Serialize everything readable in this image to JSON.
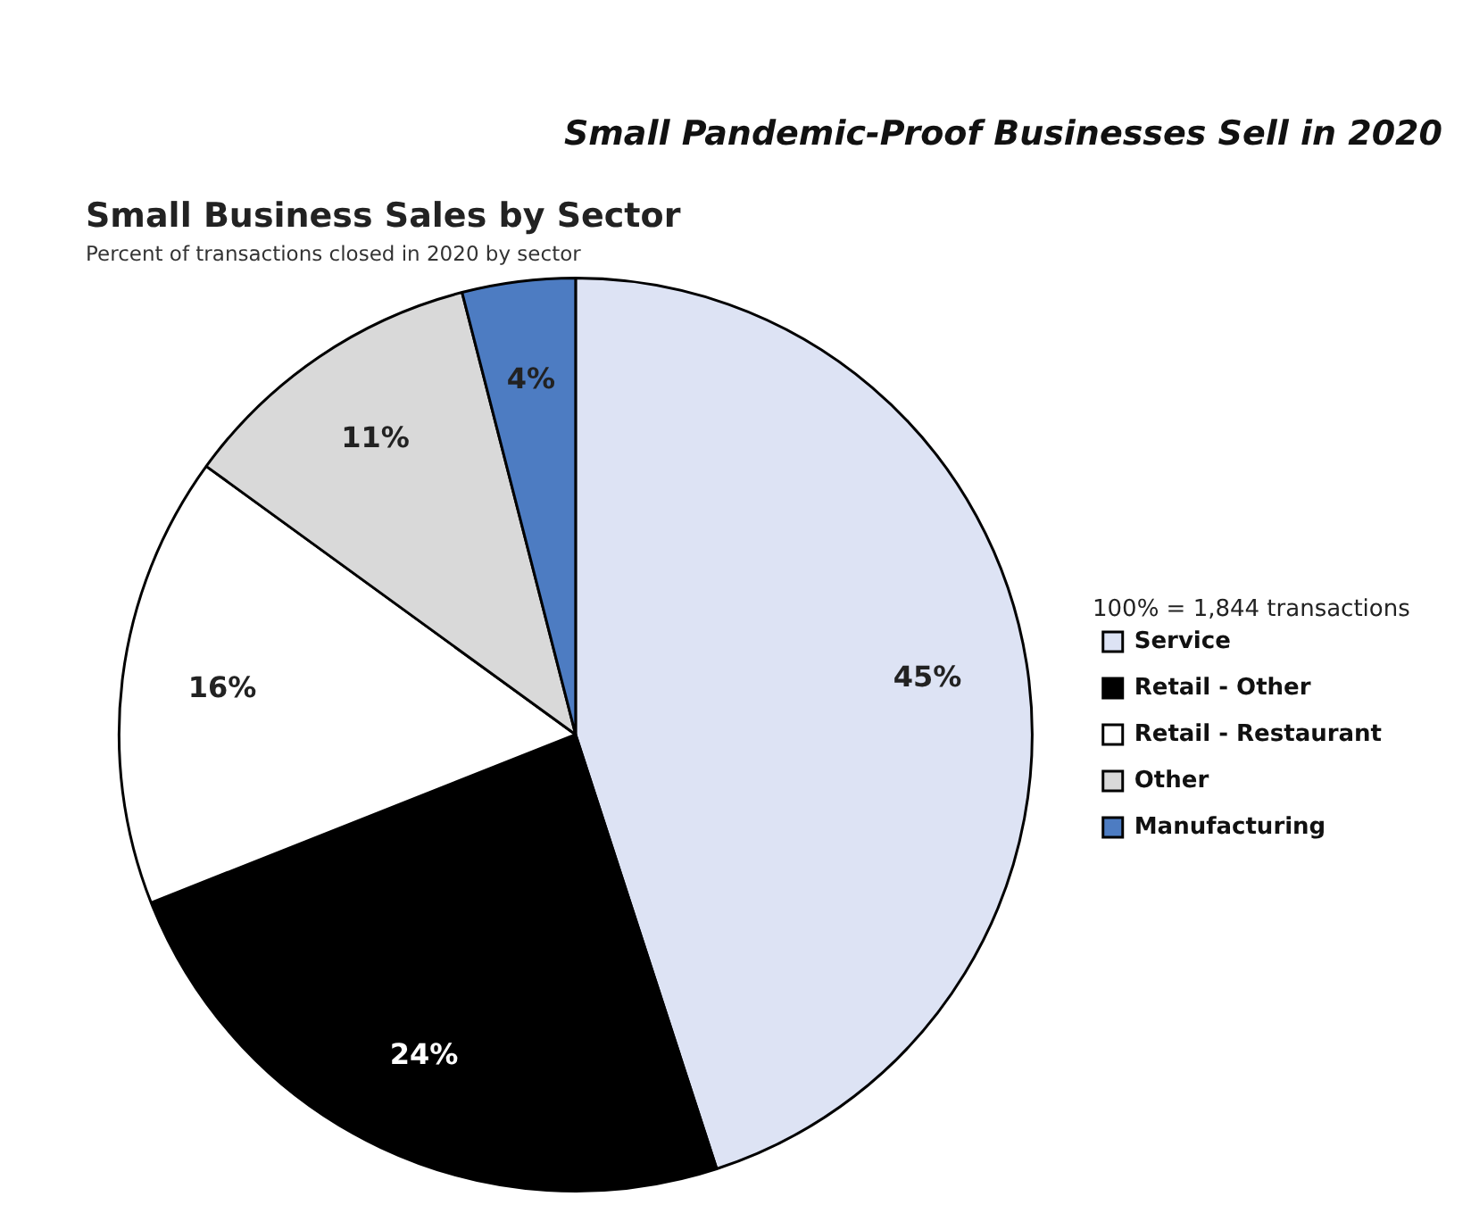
{
  "chart_data": {
    "type": "pie",
    "title": "Small Business Sales by Sector",
    "subtitle": "Percent of transactions closed in 2020 by sector",
    "annotations": [
      "Small Pandemic-Proof Businesses Sell in 2020",
      "100% = 1,844 transactions"
    ],
    "categories": [
      "Service",
      "Retail - Other",
      "Retail - Restaurant",
      "Other",
      "Manufacturing"
    ],
    "values": [
      45,
      24,
      16,
      11,
      4
    ],
    "value_labels": [
      "45%",
      "24%",
      "16%",
      "11%",
      "4%"
    ],
    "colors": [
      "#dde3f4",
      "#000000",
      "#ffffff",
      "#d9d9d9",
      "#4d7cc2"
    ],
    "legend": "right"
  }
}
